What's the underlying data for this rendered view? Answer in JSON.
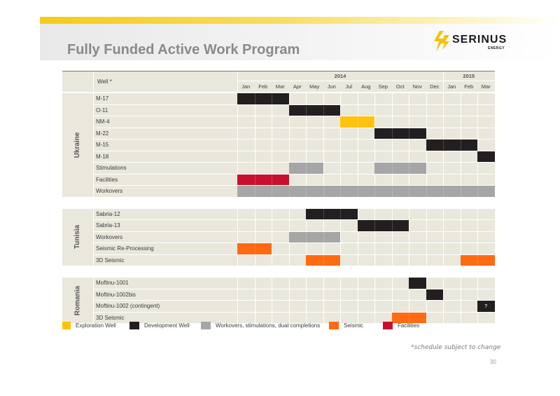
{
  "slide": {
    "title": "Fully Funded Active Work Program",
    "footnote": "*schedule subject to change",
    "page_number": "30"
  },
  "logo": {
    "name": "SERINUS",
    "sub": "ENERGY",
    "color": "#f4c20d"
  },
  "header": {
    "well_label": "Well *",
    "years": [
      {
        "label": "2014",
        "months": 12
      },
      {
        "label": "2015",
        "months": 3
      }
    ],
    "months": [
      "Jan",
      "Feb",
      "Mar",
      "Apr",
      "May",
      "Jun",
      "Jul",
      "Aug",
      "Sep",
      "Oct",
      "Nov",
      "Dec",
      "Jan",
      "Feb",
      "Mar"
    ]
  },
  "colors": {
    "exploration": "#ffc20e",
    "development": "#231f20",
    "workover": "#a6a6a6",
    "seismic": "#ff6a13",
    "facilities": "#c8102e",
    "row_bg": "#eae7dc"
  },
  "sections": [
    {
      "country": "Ukraine",
      "rows": [
        {
          "label": "M-17",
          "bars": [
            {
              "start": 0,
              "end": 3,
              "type": "development"
            }
          ]
        },
        {
          "label": "O-11",
          "bars": [
            {
              "start": 3,
              "end": 6,
              "type": "development"
            }
          ]
        },
        {
          "label": "NM-4",
          "bars": [
            {
              "start": 6,
              "end": 8,
              "type": "exploration"
            }
          ]
        },
        {
          "label": "M-22",
          "bars": [
            {
              "start": 8,
              "end": 11,
              "type": "development"
            }
          ]
        },
        {
          "label": "M-15",
          "bars": [
            {
              "start": 11,
              "end": 14,
              "type": "development"
            }
          ]
        },
        {
          "label": "M-18",
          "bars": [
            {
              "start": 14,
              "end": 15,
              "type": "development"
            }
          ]
        },
        {
          "label": "Stimulations",
          "bars": [
            {
              "start": 3,
              "end": 5,
              "type": "workover"
            },
            {
              "start": 8,
              "end": 11,
              "type": "workover"
            }
          ]
        },
        {
          "label": "Facilities",
          "bars": [
            {
              "start": 0,
              "end": 3,
              "type": "facilities"
            }
          ]
        },
        {
          "label": "Workovers",
          "bars": [
            {
              "start": 0,
              "end": 15,
              "type": "workover"
            }
          ]
        }
      ]
    },
    {
      "country": "Tunisia",
      "rows": [
        {
          "label": "Sabria-12",
          "bars": [
            {
              "start": 4,
              "end": 7,
              "type": "development"
            }
          ]
        },
        {
          "label": "Sabria-13",
          "bars": [
            {
              "start": 7,
              "end": 10,
              "type": "development"
            }
          ]
        },
        {
          "label": "Workovers",
          "bars": [
            {
              "start": 3,
              "end": 6,
              "type": "workover"
            }
          ]
        },
        {
          "label": "Seismic Re-Processing",
          "bars": [
            {
              "start": 0,
              "end": 2,
              "type": "seismic"
            }
          ]
        },
        {
          "label": "3D Seismic",
          "bars": [
            {
              "start": 4,
              "end": 6,
              "type": "seismic"
            },
            {
              "start": 13,
              "end": 15,
              "type": "seismic"
            }
          ]
        }
      ]
    },
    {
      "country": "Romania",
      "rows": [
        {
          "label": "Moftinu-1001",
          "bars": [
            {
              "start": 10,
              "end": 11,
              "type": "development"
            }
          ]
        },
        {
          "label": "Moftinu-1002bis",
          "bars": [
            {
              "start": 11,
              "end": 12,
              "type": "development"
            }
          ]
        },
        {
          "label": "Moftinu-1002 (contingent)",
          "bars": [
            {
              "start": 14,
              "end": 15,
              "type": "development",
              "text": "?"
            }
          ]
        },
        {
          "label": "3D Seismic",
          "bars": [
            {
              "start": 9,
              "end": 11,
              "type": "seismic"
            }
          ]
        }
      ]
    }
  ],
  "legend": [
    {
      "type": "exploration",
      "label": "Exploration Well"
    },
    {
      "type": "development",
      "label": "Development Well"
    },
    {
      "type": "workover",
      "label": "Workovers, stimulations, dual completions"
    },
    {
      "type": "seismic",
      "label": "Seismic"
    },
    {
      "type": "facilities",
      "label": "Facilities"
    }
  ]
}
